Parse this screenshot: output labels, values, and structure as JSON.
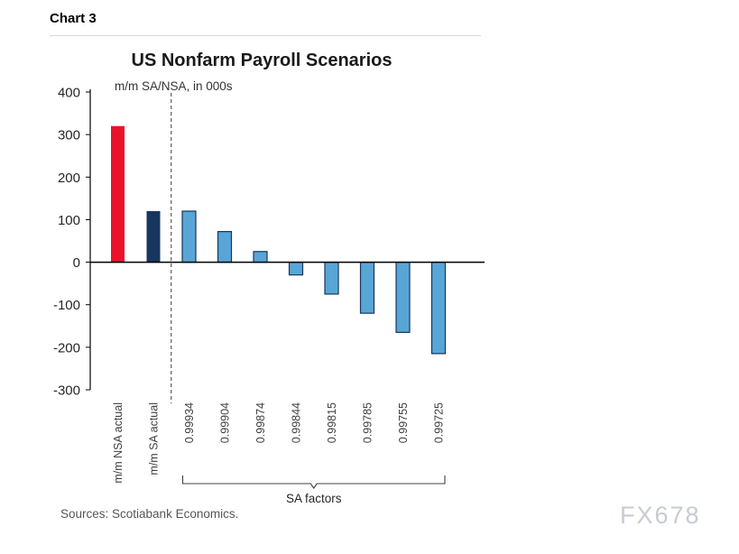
{
  "heading": "Chart 3",
  "chart_data": {
    "type": "bar",
    "title": "US Nonfarm Payroll Scenarios",
    "subtitle": "m/m SA/NSA, in 000s",
    "categories": [
      "m/m NSA actual",
      "m/m SA actual",
      "0.99934",
      "0.99904",
      "0.99874",
      "0.99844",
      "0.99815",
      "0.99785",
      "0.99755",
      "0.99725"
    ],
    "values": [
      320,
      120,
      120,
      72,
      25,
      -30,
      -75,
      -120,
      -165,
      -215
    ],
    "bar_fills": [
      "#e8132b",
      "#17365d",
      "#58a6d6",
      "#58a6d6",
      "#58a6d6",
      "#58a6d6",
      "#58a6d6",
      "#58a6d6",
      "#58a6d6",
      "#58a6d6"
    ],
    "bar_strokes": [
      null,
      null,
      "#17365d",
      "#17365d",
      "#17365d",
      "#17365d",
      "#17365d",
      "#17365d",
      "#17365d",
      "#17365d"
    ],
    "ylim": [
      -300,
      400
    ],
    "yticks": [
      400,
      300,
      200,
      100,
      0,
      -100,
      -200,
      -300
    ],
    "divider_after_index": 1,
    "group_span": [
      2,
      9
    ],
    "group_label": "SA factors",
    "grid": false,
    "legend": "none"
  },
  "footer": {
    "sources": "Sources: Scotiabank Economics.",
    "watermark": "FX678"
  }
}
